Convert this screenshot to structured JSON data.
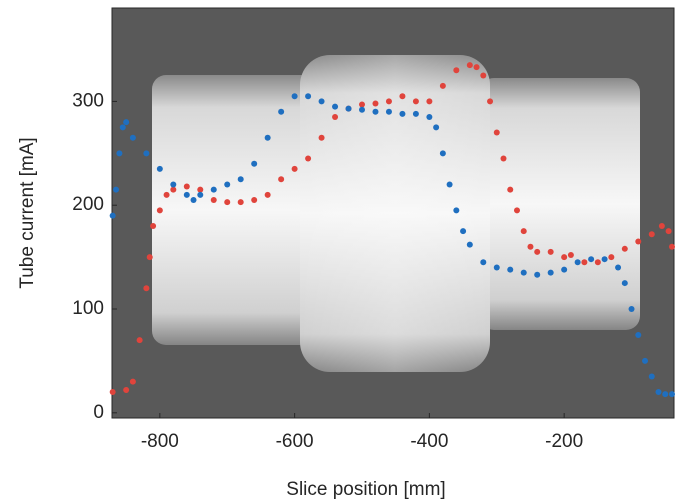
{
  "chart_data": {
    "type": "scatter",
    "xlabel": "Slice position [mm]",
    "ylabel": "Tube current [mA]",
    "xlim": [
      -871,
      -37
    ],
    "ylim": [
      -5,
      390
    ],
    "xticks": [
      -800,
      -600,
      -400,
      -200
    ],
    "yticks": [
      0,
      100,
      200,
      300
    ],
    "series": [
      {
        "color": "#e0443c",
        "x": [
          -870,
          -850,
          -840,
          -830,
          -820,
          -815,
          -810,
          -800,
          -790,
          -780,
          -760,
          -740,
          -720,
          -700,
          -680,
          -660,
          -640,
          -620,
          -600,
          -580,
          -560,
          -540,
          -520,
          -500,
          -480,
          -460,
          -440,
          -420,
          -400,
          -380,
          -360,
          -340,
          -330,
          -320,
          -310,
          -300,
          -290,
          -280,
          -270,
          -260,
          -250,
          -240,
          -220,
          -200,
          -190,
          -170,
          -150,
          -130,
          -110,
          -90,
          -70,
          -55,
          -45,
          -40
        ],
        "values": [
          20,
          22,
          30,
          70,
          120,
          150,
          180,
          195,
          210,
          215,
          218,
          215,
          205,
          203,
          203,
          205,
          210,
          225,
          235,
          245,
          265,
          285,
          293,
          297,
          298,
          300,
          305,
          300,
          300,
          315,
          330,
          335,
          333,
          325,
          300,
          270,
          245,
          215,
          195,
          175,
          160,
          155,
          155,
          150,
          152,
          145,
          145,
          150,
          158,
          165,
          172,
          180,
          175,
          160
        ]
      },
      {
        "color": "#1f6fc0",
        "x": [
          -870,
          -865,
          -860,
          -855,
          -850,
          -840,
          -820,
          -800,
          -780,
          -760,
          -750,
          -740,
          -720,
          -700,
          -680,
          -660,
          -640,
          -620,
          -600,
          -580,
          -560,
          -540,
          -520,
          -500,
          -480,
          -460,
          -440,
          -420,
          -400,
          -390,
          -380,
          -370,
          -360,
          -350,
          -340,
          -320,
          -300,
          -280,
          -260,
          -240,
          -220,
          -200,
          -180,
          -160,
          -140,
          -120,
          -110,
          -100,
          -90,
          -80,
          -70,
          -60,
          -50,
          -40
        ],
        "values": [
          190,
          215,
          250,
          275,
          280,
          265,
          250,
          235,
          220,
          210,
          205,
          210,
          215,
          220,
          225,
          240,
          265,
          290,
          305,
          305,
          300,
          295,
          293,
          292,
          290,
          290,
          288,
          288,
          285,
          275,
          250,
          220,
          195,
          175,
          162,
          145,
          140,
          138,
          135,
          133,
          135,
          138,
          145,
          148,
          148,
          140,
          125,
          100,
          75,
          50,
          35,
          20,
          18,
          18
        ]
      }
    ]
  }
}
